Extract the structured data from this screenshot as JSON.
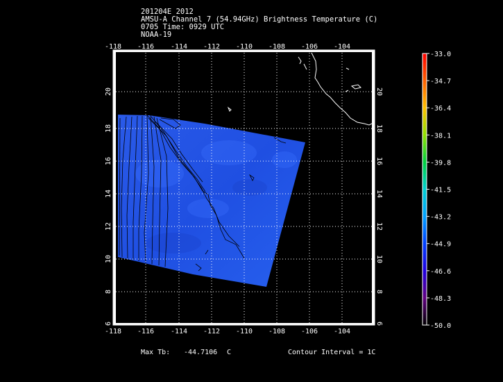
{
  "header": {
    "line1": "201204E 2012",
    "line2": "AMSU-A Channel 7 (54.94GHz) Brightness Temperature (C)",
    "line3": "0705 Time: 0929 UTC",
    "line4": "NOAA-19"
  },
  "map": {
    "lon_ticks": [
      "-118",
      "-116",
      "-114",
      "-112",
      "-110",
      "-108",
      "-106",
      "-104"
    ],
    "lat_ticks": [
      "6",
      "8",
      "10",
      "12",
      "14",
      "16",
      "18",
      "20"
    ],
    "lon_range": [
      -118,
      -102
    ],
    "lat_range": [
      6,
      22
    ],
    "grid": "dotted",
    "swath_color": "#1e50e6",
    "contour_color": "#000000",
    "coast_color": "#ffffff"
  },
  "colorbar": {
    "ticks": [
      "-33.0",
      "-34.7",
      "-36.4",
      "-38.1",
      "-39.8",
      "-41.5",
      "-43.2",
      "-44.9",
      "-46.6",
      "-48.3",
      "-50.0"
    ],
    "colors": [
      "#ff0000",
      "#ff8000",
      "#ffd000",
      "#90e000",
      "#00d060",
      "#00d0d0",
      "#00a0ff",
      "#0040ff",
      "#2000e0",
      "#600090",
      "#000000"
    ]
  },
  "footer": {
    "max_label": "Max Tb:",
    "max_value": "-44.7106",
    "max_unit": "C",
    "contour": "Contour Interval = 1C"
  }
}
